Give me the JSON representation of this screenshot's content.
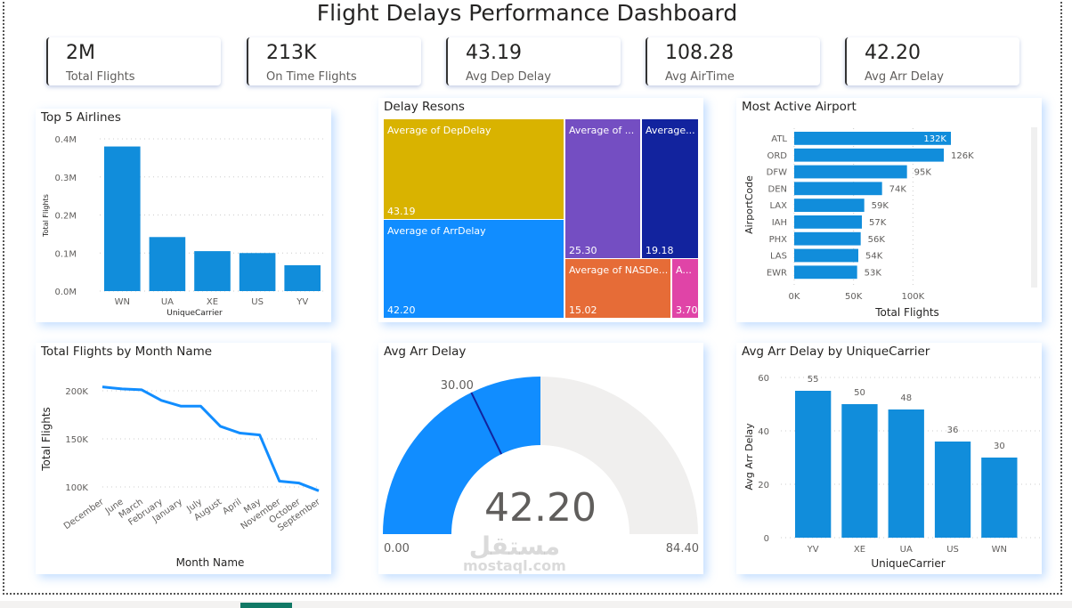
{
  "title": "Flight Delays Performance Dashboard",
  "kpis": [
    {
      "value": "2M",
      "label": "Total Flights"
    },
    {
      "value": "213K",
      "label": "On Time Flights"
    },
    {
      "value": "43.19",
      "label": "Avg Dep Delay"
    },
    {
      "value": "108.28",
      "label": "Avg AirTime"
    },
    {
      "value": "42.20",
      "label": "Avg Arr Delay"
    }
  ],
  "watermark": {
    "arabic": "مستقل",
    "latin": "mostaql.com"
  },
  "colors": {
    "bar": "#118DDB",
    "line": "#118DFF",
    "gauge_fill": "#118DFF",
    "gauge_bg": "#F0EFEE"
  },
  "chart_data": [
    {
      "type": "bar",
      "title": "Top 5 Airlines",
      "xlabel": "UniqueCarrier",
      "ylabel": "Total Flights",
      "categories": [
        "WN",
        "UA",
        "XE",
        "US",
        "YV"
      ],
      "values": [
        380000,
        142000,
        105000,
        100000,
        68000
      ],
      "ylim": [
        0,
        400000
      ],
      "yticks": [
        "0.0M",
        "0.1M",
        "0.2M",
        "0.3M",
        "0.4M"
      ],
      "grid": true
    },
    {
      "type": "treemap",
      "title": "Delay Resons",
      "items": [
        {
          "label": "Average of DepDelay",
          "value": 43.19,
          "color": "#D9B300"
        },
        {
          "label": "Average of ArrDelay",
          "value": 42.2,
          "color": "#118DFF"
        },
        {
          "label": "Average of ...",
          "value": 25.3,
          "color": "#744EC2"
        },
        {
          "label": "Average...",
          "value": 19.18,
          "color": "#12239E"
        },
        {
          "label": "Average of NASDe...",
          "value": 15.02,
          "color": "#E66C37"
        },
        {
          "label": "A...",
          "value": 3.7,
          "color": "#E044A7"
        }
      ]
    },
    {
      "type": "bar",
      "orientation": "horizontal",
      "title": "Most Active Airport",
      "xlabel": "Total Flights",
      "ylabel": "AirportCode",
      "categories": [
        "ATL",
        "ORD",
        "DFW",
        "DEN",
        "LAX",
        "IAH",
        "PHX",
        "LAS",
        "EWR"
      ],
      "values": [
        132000,
        126000,
        95000,
        74000,
        59000,
        57000,
        56000,
        54000,
        53000
      ],
      "labels": [
        "132K",
        "126K",
        "95K",
        "74K",
        "59K",
        "57K",
        "56K",
        "54K",
        "53K"
      ],
      "xlim": [
        0,
        150000
      ],
      "xticks": [
        "0K",
        "50K",
        "100K"
      ]
    },
    {
      "type": "line",
      "title": "Total Flights by Month Name",
      "xlabel": "Month Name",
      "ylabel": "Total Flights",
      "categories": [
        "December",
        "June",
        "March",
        "February",
        "January",
        "July",
        "August",
        "April",
        "May",
        "November",
        "October",
        "September"
      ],
      "values": [
        204000,
        202000,
        201000,
        190000,
        184000,
        184000,
        163000,
        156000,
        154000,
        106000,
        104000,
        96000
      ],
      "ylim": [
        90000,
        210000
      ],
      "yticks": [
        {
          "v": 100000,
          "l": "100K"
        },
        {
          "v": 150000,
          "l": "150K"
        },
        {
          "v": 200000,
          "l": "200K"
        }
      ]
    },
    {
      "type": "gauge",
      "title": "Avg Arr Delay",
      "value": 42.2,
      "value_label": "42.20",
      "min": 0,
      "min_label": "0.00",
      "max": 84.4,
      "max_label": "84.40",
      "target": 30.0,
      "target_label": "30.00"
    },
    {
      "type": "bar",
      "title": "Avg Arr Delay by UniqueCarrier",
      "xlabel": "UniqueCarrier",
      "ylabel": "Avg Arr Delay",
      "categories": [
        "YV",
        "XE",
        "UA",
        "US",
        "WN"
      ],
      "values": [
        55,
        50,
        48,
        36,
        30
      ],
      "labels": [
        "55",
        "50",
        "48",
        "36",
        "30"
      ],
      "ylim": [
        0,
        60
      ],
      "yticks": [
        "0",
        "20",
        "40",
        "60"
      ]
    }
  ]
}
